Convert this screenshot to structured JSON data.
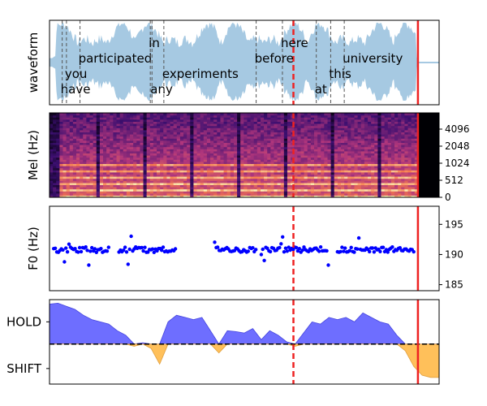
{
  "chart_data": [
    {
      "type": "area",
      "panel": "waveform",
      "ylabel": "waveform",
      "words": [
        {
          "text": "have",
          "level": 4,
          "start": 0.15
        },
        {
          "text": "you",
          "level": 3,
          "start": 0.2
        },
        {
          "text": "participated",
          "level": 2,
          "start": 0.36
        },
        {
          "text": "in",
          "level": 1,
          "start": 1.19
        },
        {
          "text": "any",
          "level": 4,
          "start": 1.21
        },
        {
          "text": "experiments",
          "level": 3,
          "start": 1.35
        },
        {
          "text": "before",
          "level": 2,
          "start": 2.44
        },
        {
          "text": "here",
          "level": 1,
          "start": 2.75
        },
        {
          "text": "at",
          "level": 4,
          "start": 3.15
        },
        {
          "text": "this",
          "level": 3,
          "start": 3.32
        },
        {
          "text": "university",
          "level": 2,
          "start": 3.48
        }
      ],
      "xlim": [
        0,
        4.6
      ],
      "speech_end": 4.35,
      "dashed_marker": 2.88,
      "solid_marker": 4.35,
      "colors": {
        "fill": "#a6c9e2",
        "line": "#a6c9e2",
        "dashed": "#555555",
        "red": "#ee2222"
      }
    },
    {
      "type": "heatmap",
      "panel": "mel spectrogram",
      "ylabel": "Mel (Hz)",
      "yticks": [
        0,
        512,
        1024,
        2048,
        4096
      ],
      "colormap": "magma",
      "dashed_marker": 2.88,
      "solid_marker": 4.35
    },
    {
      "type": "scatter",
      "panel": "pitch",
      "ylabel": "F0 (Hz)",
      "yticks": [
        185,
        190,
        195
      ],
      "ylim": [
        184,
        198
      ],
      "point_color": "#0000ff",
      "voiced_segments": [
        [
          0.05,
          0.7
        ],
        [
          0.82,
          1.5
        ],
        [
          1.95,
          2.45
        ],
        [
          2.5,
          3.3
        ],
        [
          3.4,
          4.3
        ]
      ],
      "center": 190.8,
      "dashed_marker": 2.88,
      "solid_marker": 4.35
    },
    {
      "type": "area",
      "panel": "turn-taking",
      "categories": [
        "HOLD",
        "SHIFT"
      ],
      "colors": {
        "positive": "#6666ff",
        "negative": "#ffc05a"
      },
      "ylim": [
        -0.9,
        1.0
      ],
      "series": [
        {
          "x": [
            0,
            0.1,
            0.2,
            0.3,
            0.4,
            0.5,
            0.6,
            0.7,
            0.8,
            0.9,
            1.0,
            1.1,
            1.2,
            1.3,
            1.4,
            1.5,
            1.6,
            1.7,
            1.8,
            1.9,
            2.0,
            2.1,
            2.2,
            2.3,
            2.4,
            2.5,
            2.6,
            2.7,
            2.8,
            2.9,
            3.0,
            3.1,
            3.2,
            3.3,
            3.4,
            3.5,
            3.6,
            3.7,
            3.8,
            3.9,
            4.0,
            4.1,
            4.2,
            4.3,
            4.4,
            4.5,
            4.6
          ],
          "values": [
            0.9,
            0.92,
            0.85,
            0.78,
            0.65,
            0.55,
            0.5,
            0.45,
            0.3,
            0.2,
            -0.05,
            0.03,
            -0.1,
            -0.45,
            0.5,
            0.65,
            0.6,
            0.55,
            0.6,
            0.3,
            -0.2,
            0.3,
            0.28,
            0.25,
            0.35,
            0.1,
            0.3,
            0.2,
            0.05,
            -0.05,
            0.25,
            0.5,
            0.45,
            0.6,
            0.55,
            0.6,
            0.5,
            0.7,
            0.6,
            0.5,
            0.45,
            0.2,
            -0.15,
            -0.5,
            -0.7,
            -0.75,
            -0.75
          ]
        }
      ],
      "dashed_marker": 2.88,
      "solid_marker": 4.35
    }
  ]
}
